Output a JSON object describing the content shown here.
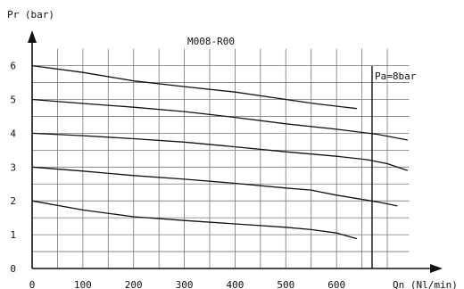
{
  "chart_data": {
    "type": "line",
    "title": "M008-R00",
    "ylabel": "Pr (bar)",
    "xlabel": "Qn (Nl/min)",
    "xlim": [
      0,
      750
    ],
    "ylim": [
      0,
      6.5
    ],
    "x_ticks": [
      0,
      100,
      200,
      300,
      400,
      500,
      600
    ],
    "y_ticks": [
      0,
      1,
      2,
      3,
      4,
      5,
      6
    ],
    "grid": true,
    "minor_x_step": 50,
    "minor_y_step": 0.5,
    "annotation": {
      "text": "Pa=8bar",
      "x": 670
    },
    "series": [
      {
        "values": [
          [
            0,
            6.0
          ],
          [
            100,
            5.8
          ],
          [
            200,
            5.55
          ],
          [
            300,
            5.38
          ],
          [
            400,
            5.22
          ],
          [
            500,
            5.0
          ],
          [
            560,
            4.87
          ],
          [
            640,
            4.73
          ]
        ]
      },
      {
        "values": [
          [
            0,
            5.0
          ],
          [
            100,
            4.88
          ],
          [
            200,
            4.77
          ],
          [
            300,
            4.64
          ],
          [
            400,
            4.47
          ],
          [
            500,
            4.28
          ],
          [
            600,
            4.12
          ],
          [
            680,
            3.97
          ],
          [
            740,
            3.8
          ]
        ]
      },
      {
        "values": [
          [
            0,
            4.0
          ],
          [
            100,
            3.93
          ],
          [
            200,
            3.84
          ],
          [
            300,
            3.74
          ],
          [
            400,
            3.6
          ],
          [
            500,
            3.45
          ],
          [
            600,
            3.32
          ],
          [
            660,
            3.22
          ],
          [
            700,
            3.1
          ],
          [
            740,
            2.9
          ]
        ]
      },
      {
        "values": [
          [
            0,
            3.0
          ],
          [
            100,
            2.88
          ],
          [
            200,
            2.75
          ],
          [
            300,
            2.64
          ],
          [
            400,
            2.52
          ],
          [
            500,
            2.38
          ],
          [
            550,
            2.32
          ],
          [
            600,
            2.17
          ],
          [
            680,
            1.97
          ],
          [
            720,
            1.85
          ]
        ]
      },
      {
        "values": [
          [
            0,
            2.0
          ],
          [
            100,
            1.73
          ],
          [
            200,
            1.53
          ],
          [
            300,
            1.42
          ],
          [
            400,
            1.32
          ],
          [
            500,
            1.22
          ],
          [
            550,
            1.15
          ],
          [
            600,
            1.05
          ],
          [
            640,
            0.88
          ]
        ]
      }
    ]
  },
  "colors": {
    "line": "#111111",
    "grid": "#777777",
    "axis": "#111111"
  }
}
